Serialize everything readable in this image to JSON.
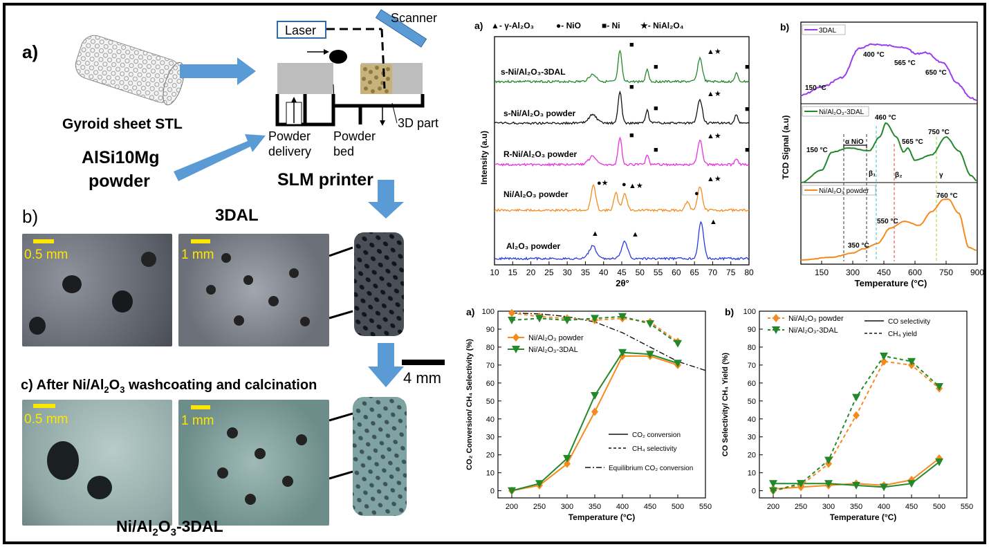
{
  "left": {
    "a_label": "a)",
    "gyroid_label": "Gyroid sheet STL",
    "powder_label_1": "AlSi10Mg",
    "powder_label_2": "powder",
    "laser": "Laser",
    "scanner": "Scanner",
    "delivery_1": "Powder",
    "delivery_2": "delivery",
    "bed_1": "Powder",
    "bed_2": "bed",
    "part": "3D part",
    "printer": "SLM printer",
    "b_label": "b)",
    "b_title": "3DAL",
    "scale_05": "0.5 mm",
    "scale_1": "1 mm",
    "scale_4": "4 mm",
    "c_label": "c)",
    "c_title_pre": "After Ni/Al",
    "c_title_sub": "2",
    "c_title_mid": "O",
    "c_title_sub2": "3",
    "c_title_post": " washcoating and calcination",
    "bottom_pre": "Ni/Al",
    "bottom_s1": "2",
    "bottom_mid": "O",
    "bottom_s2": "3",
    "bottom_post": "-3DAL"
  },
  "colors": {
    "green": "#22882a",
    "black": "#111111",
    "magenta": "#e830e0",
    "orange": "#f58a1f",
    "blue": "#2a3adf",
    "purple": "#9a3df0",
    "arrow": "#5b9bd5"
  },
  "xrd": {
    "panel": "a)",
    "legend": [
      "▲- γ-Al₂O₃",
      "●- NiO",
      "■- Ni",
      "★- NiAl₂O₄"
    ],
    "ylabel": "Intensity (a.u)",
    "xlabel": "2θ°",
    "xticks": [
      "10",
      "15",
      "20",
      "25",
      "30",
      "35",
      "40",
      "45",
      "50",
      "55",
      "60",
      "65",
      "70",
      "75",
      "80"
    ],
    "series": [
      "s-Ni/Al₂O₃-3DAL",
      "s-Ni/Al₂O₃ powder",
      "R-Ni/Al₂O₃ powder",
      "Ni/Al₂O₃ powder",
      "Al₂O₃ powder"
    ]
  },
  "tpr": {
    "panel": "b)",
    "ylabel": "TCD Signal (a.u)",
    "xlabel": "Temperature (°C)",
    "xticks": [
      "150",
      "300",
      "450",
      "600",
      "750",
      "900"
    ],
    "legends": [
      "3DAL",
      "Ni/Al₂O₃-3DAL",
      "Ni/Al₂O₃ powder"
    ],
    "ann1": [
      "150 °C",
      "400 °C",
      "565 °C",
      "650 °C"
    ],
    "ann2": [
      "150 °C",
      "α NiO",
      "460 °C",
      "565 °C",
      "750 °C",
      "β₁",
      "β₂",
      "γ"
    ],
    "ann3": [
      "350 °C",
      "550 °C",
      "760 °C"
    ]
  },
  "chart_data": [
    {
      "type": "line",
      "title": "a)",
      "xlabel": "Temperature (°C)",
      "ylabel": "CO₂ Conversion/ CH₄ Selectivity (%)",
      "xlim": [
        175,
        550
      ],
      "ylim": [
        -4,
        100
      ],
      "xticks": [
        200,
        250,
        300,
        350,
        400,
        450,
        500,
        550
      ],
      "yticks": [
        0,
        10,
        20,
        30,
        40,
        50,
        60,
        70,
        80,
        90,
        100
      ],
      "x": [
        200,
        250,
        300,
        350,
        400,
        450,
        500
      ],
      "series": [
        {
          "name": "Ni/Al₂O₃ powder CO₂ conversion",
          "values": [
            0,
            3,
            15,
            44,
            75,
            75,
            70
          ]
        },
        {
          "name": "Ni/Al₂O₃-3DAL CO₂ conversion",
          "values": [
            0,
            4,
            18,
            53,
            77,
            76,
            71
          ]
        },
        {
          "name": "Ni/Al₂O₃ powder CH₄ selectivity",
          "values": [
            99,
            97,
            96,
            95,
            96,
            94,
            83
          ]
        },
        {
          "name": "Ni/Al₂O₃-3DAL CH₄ selectivity",
          "values": [
            95,
            96,
            95,
            96,
            97,
            93,
            82
          ]
        }
      ],
      "equilibrium": {
        "x": [
          200,
          250,
          300,
          350,
          400,
          450,
          500,
          550
        ],
        "values": [
          99,
          98.5,
          97,
          94,
          88,
          80,
          72,
          67
        ]
      },
      "legend": [
        "Ni/Al₂O₃ powder",
        "Ni/Al₂O₃-3DAL"
      ],
      "style_legend": [
        "CO₂ conversion",
        "CH₄ selectivity",
        "Equilibrium CO₂ conversion"
      ]
    },
    {
      "type": "line",
      "title": "b)",
      "xlabel": "Temperature (°C)",
      "ylabel": "CO Selectivity/ CH₄ Yield (%)",
      "xlim": [
        175,
        550
      ],
      "ylim": [
        -4,
        100
      ],
      "xticks": [
        200,
        250,
        300,
        350,
        400,
        450,
        500,
        550
      ],
      "yticks": [
        0,
        10,
        20,
        30,
        40,
        50,
        60,
        70,
        80,
        90,
        100
      ],
      "x": [
        200,
        250,
        300,
        350,
        400,
        450,
        500
      ],
      "series": [
        {
          "name": "Ni/Al₂O₃ powder CO selectivity",
          "values": [
            1,
            2,
            3,
            4,
            3,
            6,
            18
          ]
        },
        {
          "name": "Ni/Al₂O₃-3DAL CO selectivity",
          "values": [
            4,
            4,
            4,
            3,
            2,
            4,
            16
          ]
        },
        {
          "name": "Ni/Al₂O₃ powder CH₄ yield",
          "values": [
            0,
            3,
            15,
            42,
            72,
            70,
            57
          ]
        },
        {
          "name": "Ni/Al₂O₃-3DAL CH₄ yield",
          "values": [
            0,
            4,
            17,
            52,
            75,
            72,
            58
          ]
        }
      ],
      "legend": [
        "Ni/Al₂O₃ powder",
        "Ni/Al₂O₃-3DAL"
      ],
      "style_legend": [
        "CO selectivity",
        "CH₄ yield"
      ]
    }
  ]
}
